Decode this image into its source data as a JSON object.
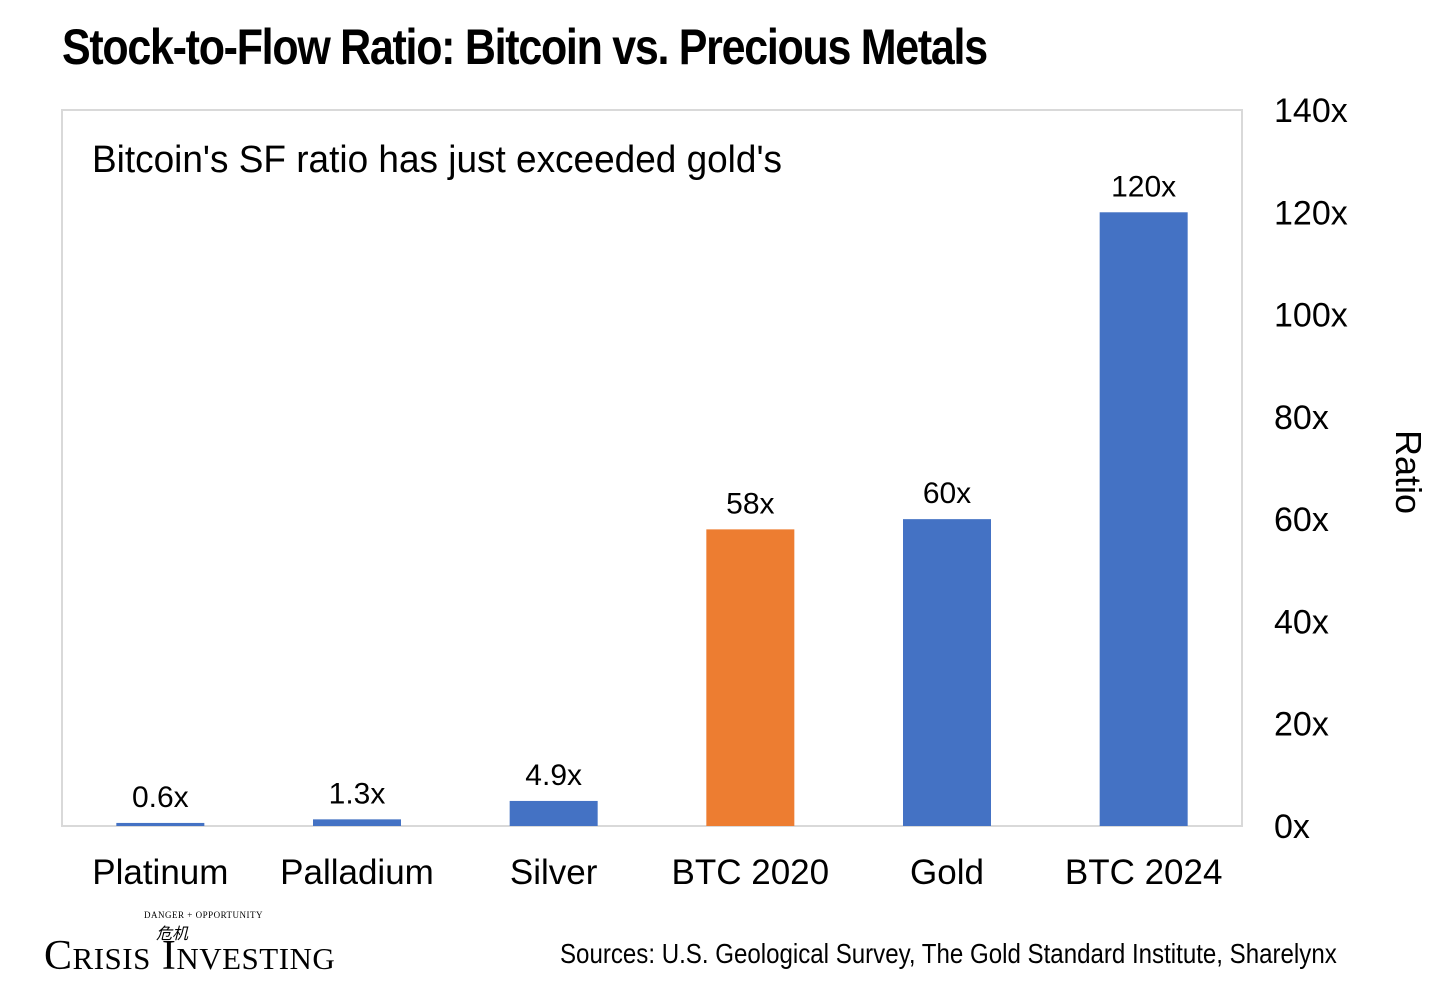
{
  "title": "Stock-to-Flow Ratio: Bitcoin vs. Precious Metals",
  "logo": {
    "small_text": "DANGER + OPPORTUNITY",
    "mark": "危机",
    "name_first_cap": "C",
    "name_first_rest": "RISIS",
    "name_second_cap": "I",
    "name_second_rest": "NVESTING"
  },
  "sources": "Sources: U.S. Geological Survey, The Gold Standard Institute, Sharelynx",
  "chart_data": {
    "type": "bar",
    "subtitle": "Bitcoin's SF ratio has just exceeded gold's",
    "categories": [
      "Platinum",
      "Palladium",
      "Silver",
      "BTC 2020",
      "Gold",
      "BTC 2024"
    ],
    "values": [
      0.6,
      1.3,
      4.9,
      58,
      60,
      120
    ],
    "data_labels": [
      "0.6x",
      "1.3x",
      "4.9x",
      "58x",
      "60x",
      "120x"
    ],
    "bar_colors": [
      "#4472C4",
      "#4472C4",
      "#4472C4",
      "#ED7D31",
      "#4472C4",
      "#4472C4"
    ],
    "ylabel": "Ratio",
    "ylim": [
      0,
      140
    ],
    "yticks": [
      0,
      20,
      40,
      60,
      80,
      100,
      120,
      140
    ],
    "ytick_labels": [
      "0x",
      "20x",
      "40x",
      "60x",
      "80x",
      "100x",
      "120x",
      "140x"
    ],
    "y_axis_side": "right",
    "grid": false,
    "legend": false
  }
}
